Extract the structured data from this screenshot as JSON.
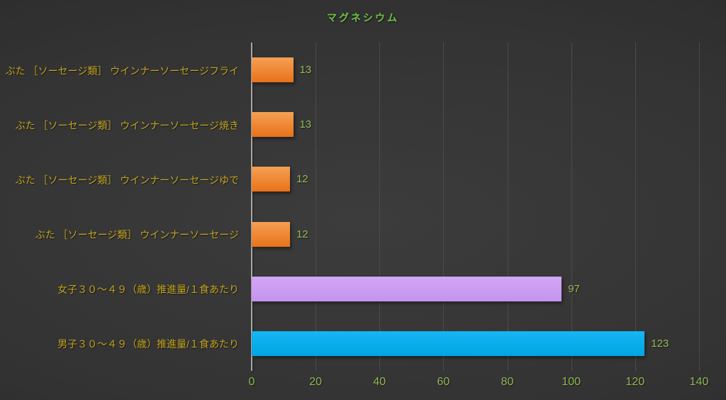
{
  "chart_data": {
    "type": "bar",
    "orientation": "horizontal",
    "title": "マグネシウム",
    "xlabel": "",
    "ylabel": "",
    "xlim": [
      0,
      140
    ],
    "xticks": [
      0,
      20,
      40,
      60,
      80,
      100,
      120,
      140
    ],
    "grid": true,
    "legend": false,
    "categories": [
      "ぶた ［ソーセージ類］ ウインナーソーセージフライ",
      "ぶた ［ソーセージ類］ ウインナーソーセージ焼き",
      "ぶた ［ソーセージ類］ ウインナーソーセージゆで",
      "ぶた ［ソーセージ類］ ウインナーソーセージ",
      "女子３０～４９（歳）推進量/１食あたり",
      "男子３０～４９（歳）推進量/１食あたり"
    ],
    "values": [
      13,
      13,
      12,
      12,
      97,
      123
    ],
    "bar_colors": [
      {
        "top": "#f5a054",
        "bottom": "#e8721a"
      },
      {
        "top": "#f5a054",
        "bottom": "#e8721a"
      },
      {
        "top": "#f5a054",
        "bottom": "#e8721a"
      },
      {
        "top": "#f5a054",
        "bottom": "#e8721a"
      },
      {
        "top": "#d2a6f6",
        "bottom": "#c493ee"
      },
      {
        "top": "#16b6f2",
        "bottom": "#00a5e2"
      }
    ],
    "colors": {
      "background_center": "#3c3c3c",
      "background_edge": "#272727",
      "title": "#6ec24a",
      "value_label": "#98bd58",
      "tick_label": "#8fba54",
      "category_label": "#c4a51f",
      "gridline": "#4b4b4b",
      "axis_line": "#a8a8a8"
    }
  }
}
